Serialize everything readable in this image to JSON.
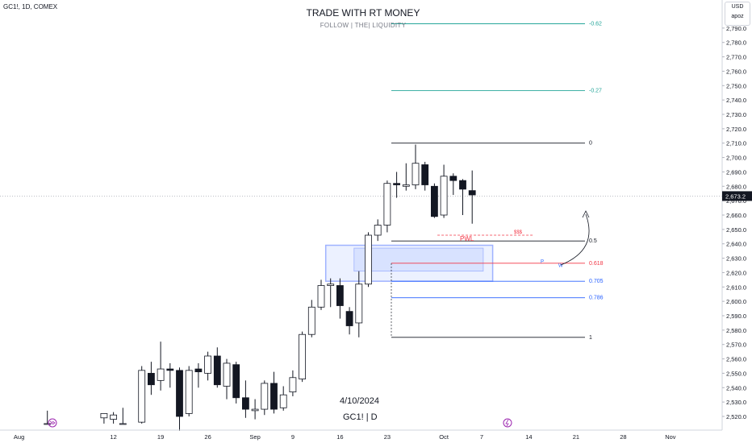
{
  "header": {
    "symbol_line": "GC1!, 1D, COMEX",
    "currency": "USD",
    "scale_label": "apoz"
  },
  "annotations": {
    "title": "TRADE WITH RT MONEY",
    "subtitle": "FOLLOW  |  THE|  LIQUIDITY",
    "date_note": "4/10/2024",
    "symbol_note": "GC1!  |  D",
    "pwl": "PWL",
    "dollars": "$$$",
    "zone_p": "P",
    "zone_w": "W"
  },
  "colors": {
    "bull_body": "#ffffff",
    "bear_body": "#131722",
    "fib_teal": "#26a69a",
    "fib_black": "#131722",
    "fib_red": "#f23645",
    "fib_blue": "#2962ff",
    "zone_fill": "#c9d6ff",
    "pwl_red": "#f23645"
  },
  "chart_data": {
    "type": "candlestick",
    "title": "TRADE WITH RT MONEY",
    "ylim": [
      2515,
      2800
    ],
    "current_price": "2,673.2",
    "y_ticks": [
      "2,520.0",
      "2,530.0",
      "2,540.0",
      "2,550.0",
      "2,560.0",
      "2,570.0",
      "2,580.0",
      "2,590.0",
      "2,600.0",
      "2,610.0",
      "2,620.0",
      "2,630.0",
      "2,640.0",
      "2,650.0",
      "2,660.0",
      "2,670.0",
      "2,680.0",
      "2,690.0",
      "2,700.0",
      "2,710.0",
      "2,720.0",
      "2,730.0",
      "2,740.0",
      "2,750.0",
      "2,760.0",
      "2,770.0",
      "2,780.0",
      "2,790.0"
    ],
    "x_ticks": [
      {
        "label": "26",
        "index": -11
      },
      {
        "label": "Aug",
        "index": -7
      },
      {
        "label": "12",
        "index": 3
      },
      {
        "label": "19",
        "index": 8
      },
      {
        "label": "26",
        "index": 13
      },
      {
        "label": "Sep",
        "index": 18
      },
      {
        "label": "9",
        "index": 22
      },
      {
        "label": "16",
        "index": 27
      },
      {
        "label": "23",
        "index": 32
      },
      {
        "label": "Oct",
        "index": 38
      },
      {
        "label": "7",
        "index": 42
      },
      {
        "label": "14",
        "index": 47
      },
      {
        "label": "21",
        "index": 52
      },
      {
        "label": "28",
        "index": 57
      },
      {
        "label": "Nov",
        "index": 62
      }
    ],
    "candles": [
      {
        "i": -4,
        "o": 2515,
        "h": 2524,
        "l": 2515,
        "c": 2515
      },
      {
        "i": 2,
        "o": 2519,
        "h": 2522,
        "l": 2515,
        "c": 2522
      },
      {
        "i": 3,
        "o": 2518,
        "h": 2523,
        "l": 2515,
        "c": 2521
      },
      {
        "i": 4,
        "o": 2515,
        "h": 2526,
        "l": 2515,
        "c": 2515
      },
      {
        "i": 6,
        "o": 2516,
        "h": 2555,
        "l": 2515,
        "c": 2552
      },
      {
        "i": 7,
        "o": 2550,
        "h": 2558,
        "l": 2535,
        "c": 2542
      },
      {
        "i": 8,
        "o": 2545,
        "h": 2572,
        "l": 2538,
        "c": 2553
      },
      {
        "i": 9,
        "o": 2553,
        "h": 2557,
        "l": 2540,
        "c": 2552
      },
      {
        "i": 10,
        "o": 2552,
        "h": 2554,
        "l": 2510,
        "c": 2520
      },
      {
        "i": 11,
        "o": 2522,
        "h": 2555,
        "l": 2520,
        "c": 2552
      },
      {
        "i": 12,
        "o": 2553,
        "h": 2557,
        "l": 2540,
        "c": 2551
      },
      {
        "i": 13,
        "o": 2550,
        "h": 2565,
        "l": 2545,
        "c": 2562
      },
      {
        "i": 14,
        "o": 2562,
        "h": 2568,
        "l": 2540,
        "c": 2542
      },
      {
        "i": 15,
        "o": 2541,
        "h": 2560,
        "l": 2532,
        "c": 2557
      },
      {
        "i": 16,
        "o": 2556,
        "h": 2558,
        "l": 2529,
        "c": 2533
      },
      {
        "i": 17,
        "o": 2533,
        "h": 2545,
        "l": 2519,
        "c": 2525
      },
      {
        "i": 18,
        "o": 2524,
        "h": 2532,
        "l": 2518,
        "c": 2525
      },
      {
        "i": 19,
        "o": 2525,
        "h": 2545,
        "l": 2521,
        "c": 2543
      },
      {
        "i": 20,
        "o": 2543,
        "h": 2551,
        "l": 2522,
        "c": 2525
      },
      {
        "i": 21,
        "o": 2526,
        "h": 2541,
        "l": 2524,
        "c": 2535
      },
      {
        "i": 22,
        "o": 2537,
        "h": 2552,
        "l": 2534,
        "c": 2547
      },
      {
        "i": 23,
        "o": 2546,
        "h": 2579,
        "l": 2544,
        "c": 2577
      },
      {
        "i": 24,
        "o": 2577,
        "h": 2601,
        "l": 2575,
        "c": 2596
      },
      {
        "i": 25,
        "o": 2596,
        "h": 2615,
        "l": 2594,
        "c": 2611
      },
      {
        "i": 26,
        "o": 2611,
        "h": 2616,
        "l": 2596,
        "c": 2612
      },
      {
        "i": 27,
        "o": 2611,
        "h": 2616,
        "l": 2588,
        "c": 2597
      },
      {
        "i": 28,
        "o": 2593,
        "h": 2596,
        "l": 2577,
        "c": 2583
      },
      {
        "i": 29,
        "o": 2585,
        "h": 2621,
        "l": 2575,
        "c": 2612
      },
      {
        "i": 30,
        "o": 2612,
        "h": 2648,
        "l": 2610,
        "c": 2646
      },
      {
        "i": 31,
        "o": 2646,
        "h": 2657,
        "l": 2642,
        "c": 2653
      },
      {
        "i": 32,
        "o": 2653,
        "h": 2684,
        "l": 2648,
        "c": 2682
      },
      {
        "i": 33,
        "o": 2682,
        "h": 2690,
        "l": 2672,
        "c": 2681
      },
      {
        "i": 34,
        "o": 2680,
        "h": 2696,
        "l": 2677,
        "c": 2681
      },
      {
        "i": 35,
        "o": 2681,
        "h": 2709,
        "l": 2678,
        "c": 2696
      },
      {
        "i": 36,
        "o": 2695,
        "h": 2697,
        "l": 2677,
        "c": 2681
      },
      {
        "i": 37,
        "o": 2680,
        "h": 2682,
        "l": 2658,
        "c": 2659
      },
      {
        "i": 38,
        "o": 2660,
        "h": 2695,
        "l": 2658,
        "c": 2687
      },
      {
        "i": 39,
        "o": 2687,
        "h": 2689,
        "l": 2674,
        "c": 2684
      },
      {
        "i": 40,
        "o": 2684,
        "h": 2685,
        "l": 2660,
        "c": 2678
      },
      {
        "i": 41,
        "o": 2677,
        "h": 2691,
        "l": 2654,
        "c": 2674
      }
    ],
    "fib_levels": [
      {
        "label": "-0.62",
        "price": 2793.0,
        "color": "#26a69a"
      },
      {
        "label": "-0.27",
        "price": 2746.5,
        "color": "#26a69a"
      },
      {
        "label": "0",
        "price": 2710.0,
        "color": "#131722"
      },
      {
        "label": "0.5",
        "price": 2642.0,
        "color": "#131722"
      },
      {
        "label": "0.618",
        "price": 2626.5,
        "color": "#f23645"
      },
      {
        "label": "0.705",
        "price": 2614.0,
        "color": "#2962ff"
      },
      {
        "label": "0.786",
        "price": 2602.5,
        "color": "#2962ff"
      },
      {
        "label": "1",
        "price": 2575.0,
        "color": "#131722"
      }
    ],
    "zones": [
      {
        "from_index": 26,
        "to_index": 43,
        "top": 2639,
        "bottom": 2614
      },
      {
        "from_index": 29,
        "to_index": 42,
        "top": 2637,
        "bottom": 2621
      }
    ]
  }
}
